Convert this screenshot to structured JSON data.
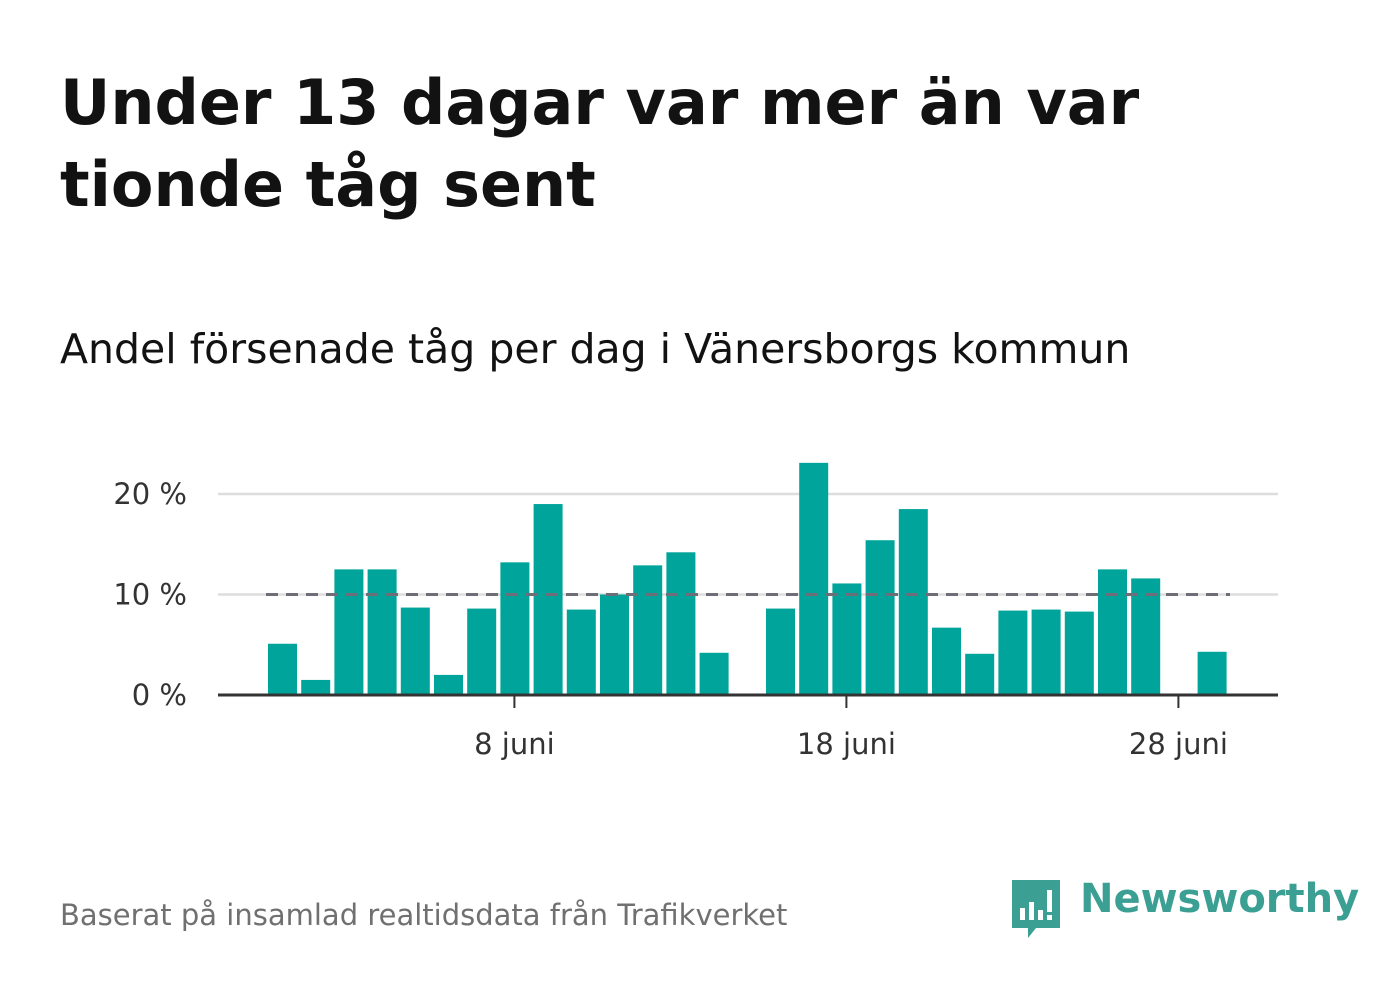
{
  "title": "Under 13 dagar var mer än var tionde tåg sent",
  "subtitle": "Andel försenade tåg per dag i Vänersborgs kommun",
  "source": "Baserat på insamlad realtidsdata från Trafikverket",
  "brand": {
    "name": "Newsworthy",
    "color": "#3c9f94",
    "icon": "newsworthy-logo-icon"
  },
  "colors": {
    "bar": "#00a49a",
    "reference_line": "#6e6e78",
    "grid": "#dddddd",
    "axis": "#333333"
  },
  "chart_data": {
    "type": "bar",
    "x": [
      1,
      2,
      3,
      4,
      5,
      6,
      7,
      8,
      9,
      10,
      11,
      12,
      13,
      14,
      15,
      16,
      17,
      18,
      19,
      20,
      21,
      22,
      23,
      24,
      25,
      26,
      27,
      28,
      29,
      30
    ],
    "values": [
      5.1,
      1.5,
      12.5,
      12.5,
      8.7,
      2.0,
      8.6,
      13.2,
      19.0,
      8.5,
      10.0,
      12.9,
      14.2,
      4.2,
      null,
      8.6,
      23.1,
      11.1,
      15.4,
      18.5,
      6.7,
      4.1,
      8.4,
      8.5,
      8.3,
      12.5,
      11.6,
      null,
      4.3,
      null
    ],
    "reference_line": 10,
    "yticks": [
      {
        "value": 0,
        "label": "0 %"
      },
      {
        "value": 10,
        "label": "10 %"
      },
      {
        "value": 20,
        "label": "20 %"
      }
    ],
    "xticks": [
      {
        "value": 8,
        "label": "8 juni"
      },
      {
        "value": 18,
        "label": "18 juni"
      },
      {
        "value": 28,
        "label": "28 juni"
      }
    ],
    "ylim": [
      0,
      24
    ],
    "grid": true
  }
}
